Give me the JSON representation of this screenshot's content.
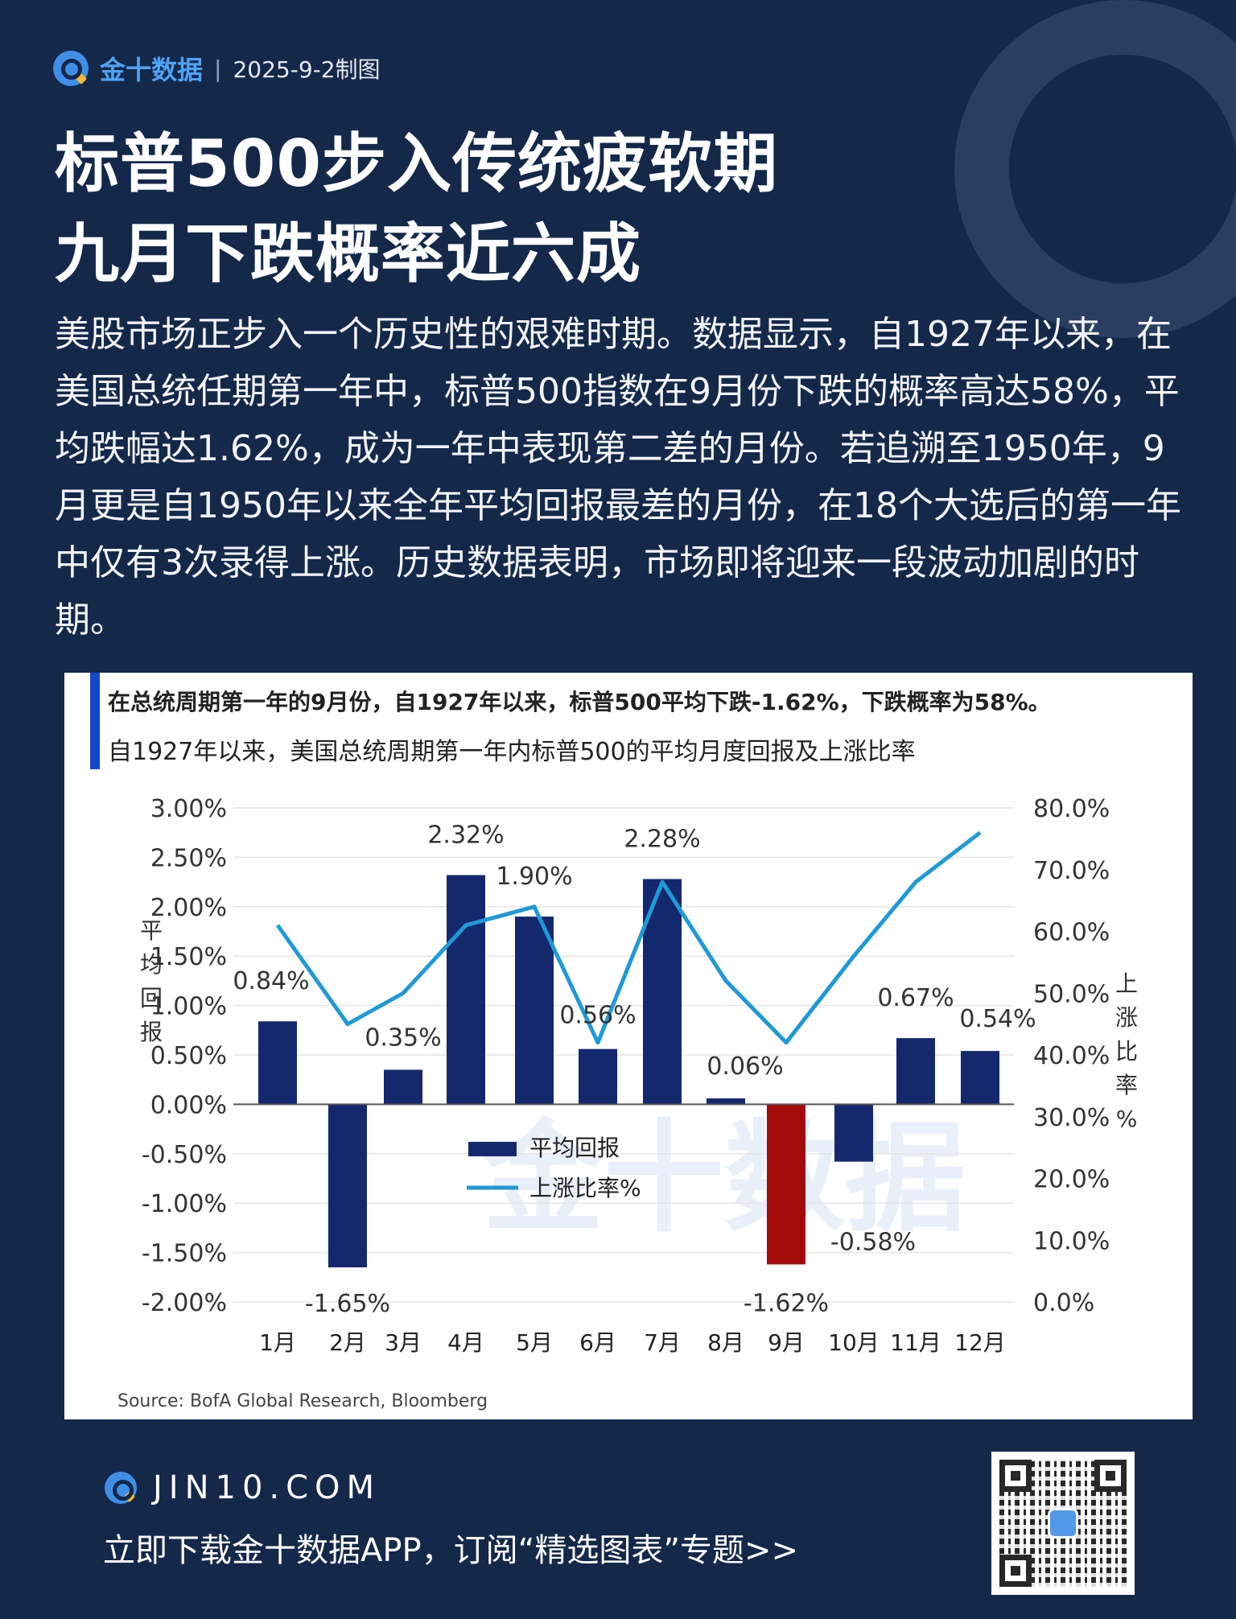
{
  "header": {
    "brand": "金十数据",
    "separator": "|",
    "date": "2025-9-2制图"
  },
  "title": {
    "line1": "标普500步入传统疲软期",
    "line2": "九月下跌概率近六成"
  },
  "intro": "美股市场正步入一个历史性的艰难时期。数据显示，自1927年以来，在美国总统任期第一年中，标普500指数在9月份下跌的概率高达58%，平均跌幅达1.62%，成为一年中表现第二差的月份。若追溯至1950年，9月更是自1950年以来全年平均回报最差的月份，在18个大选后的第一年中仅有3次录得上涨。历史数据表明，市场即将迎来一段波动加剧的时期。",
  "chart_data": {
    "type": "bar",
    "headline": "在总统周期第一年的9月份，自1927年以来，标普500平均下跌-1.62%，下跌概率为58%。",
    "title": "自1927年以来，美国总统周期第一年内标普500的平均月度回报及上涨比率",
    "categories": [
      "1月",
      "2月",
      "3月",
      "4月",
      "5月",
      "6月",
      "7月",
      "8月",
      "9月",
      "10月",
      "11月",
      "12月"
    ],
    "series": [
      {
        "name": "平均回报",
        "kind": "bar",
        "axis": "left",
        "values": [
          0.84,
          -1.65,
          0.35,
          2.32,
          1.9,
          0.56,
          2.28,
          0.06,
          -1.62,
          -0.58,
          0.67,
          0.54
        ],
        "labels": [
          "0.84%",
          "-1.65%",
          "0.35%",
          "2.32%",
          "1.90%",
          "0.56%",
          "2.28%",
          "0.06%",
          "-1.62%",
          "-0.58%",
          "0.67%",
          "0.54%"
        ],
        "color": "#14286e",
        "highlight_color": "#a50a0a",
        "highlight_index": 8
      },
      {
        "name": "上涨比率%",
        "kind": "line",
        "axis": "right",
        "values": [
          61,
          45,
          50,
          61,
          64,
          42,
          68,
          52,
          42,
          56,
          68,
          76
        ],
        "color": "#1e9ad6"
      }
    ],
    "ylabel": "平均回报",
    "y2label": "上涨比率%",
    "ylim": [
      -2.0,
      3.0
    ],
    "y2lim": [
      0,
      80
    ],
    "yticks": [
      "3.00%",
      "2.50%",
      "2.00%",
      "1.50%",
      "1.00%",
      "0.50%",
      "0.00%",
      "-0.50%",
      "-1.00%",
      "-1.50%",
      "-2.00%"
    ],
    "y2ticks": [
      "80.0%",
      "70.0%",
      "60.0%",
      "50.0%",
      "40.0%",
      "30.0%",
      "20.0%",
      "10.0%",
      "0.0%"
    ],
    "grid": true,
    "legend": "center",
    "source": "Source: BofA Global Research, Bloomberg",
    "watermark": "金十数据",
    "colors": {
      "accent_bar": "#1446c8"
    }
  },
  "footer": {
    "site": "JIN10.COM",
    "cta": "立即下载金十数据APP，订阅“精选图表”专题>>"
  }
}
